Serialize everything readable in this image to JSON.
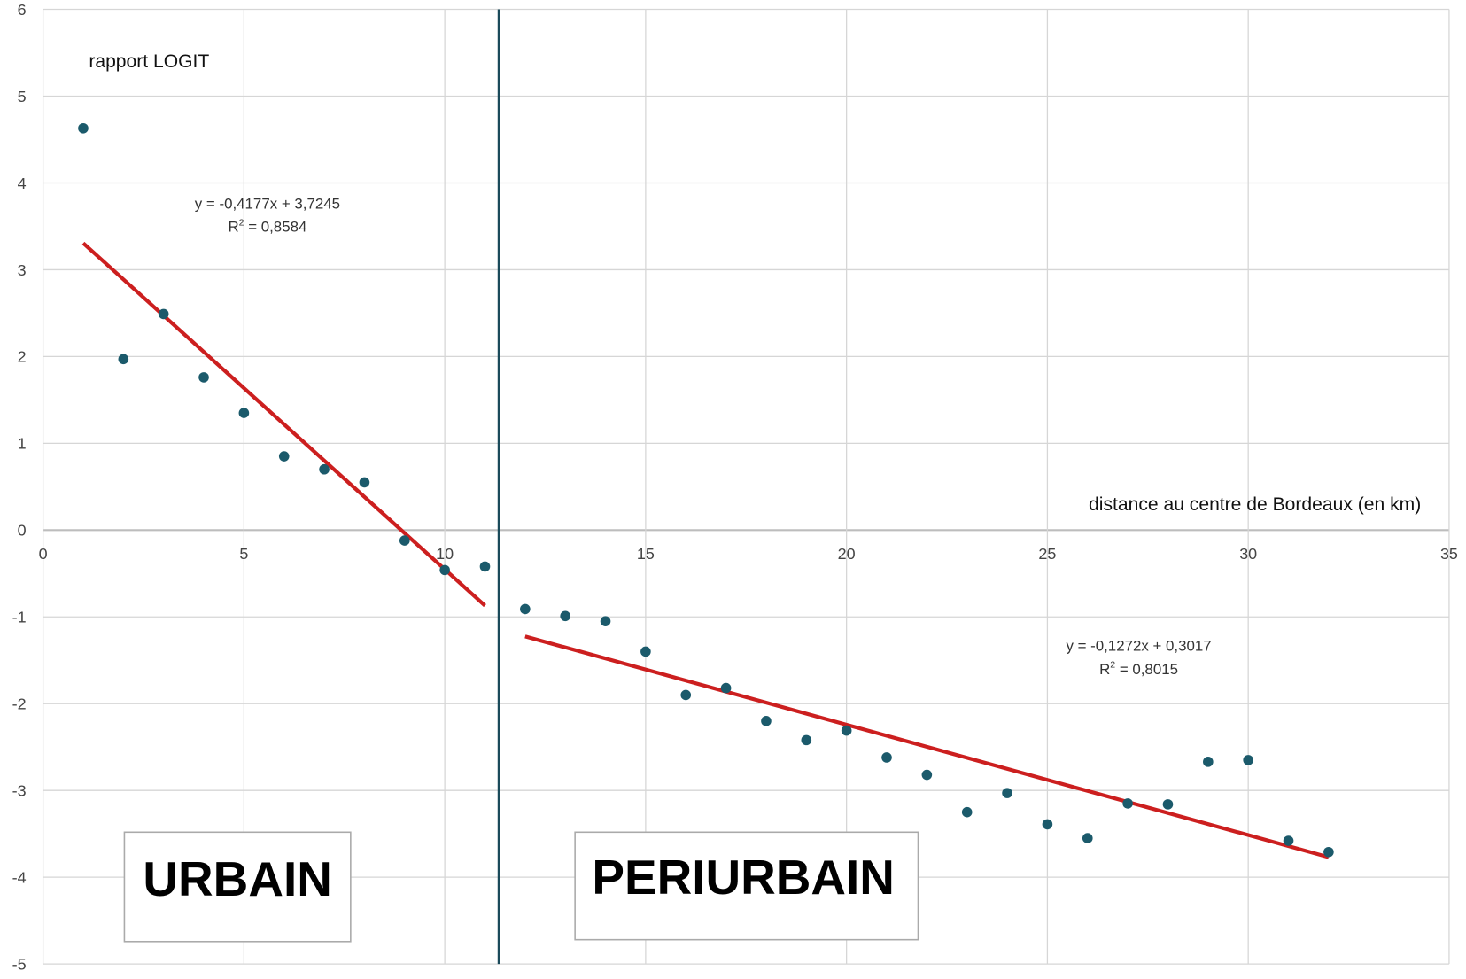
{
  "chart_data": {
    "type": "scatter",
    "title": "",
    "xlabel": "distance au centre de Bordeaux (en km)",
    "ylabel": "rapport LOGIT",
    "xlim": [
      0,
      35
    ],
    "ylim": [
      -5,
      6
    ],
    "xticks": [
      "0",
      "5",
      "10",
      "15",
      "20",
      "25",
      "30",
      "35"
    ],
    "yticks": [
      "6",
      "5",
      "4",
      "3",
      "2",
      "1",
      "0",
      "-1",
      "-2",
      "-3",
      "-4",
      "-5"
    ],
    "grid": true,
    "point_color": "#1b5a6b",
    "trend_color": "#cc1f1f",
    "separator_color": "#1a4a5a",
    "separator_x": 11.35,
    "points": {
      "x": [
        1,
        2,
        3,
        4,
        5,
        6,
        7,
        8,
        9,
        10,
        11,
        12,
        13,
        14,
        15,
        16,
        17,
        18,
        19,
        20,
        21,
        22,
        23,
        24,
        25,
        26,
        27,
        28,
        29,
        30,
        31,
        32
      ],
      "y": [
        4.63,
        1.97,
        2.49,
        1.76,
        1.35,
        0.85,
        0.7,
        0.55,
        -0.12,
        -0.46,
        -0.42,
        -0.91,
        -0.99,
        -1.05,
        -1.4,
        -1.9,
        -1.82,
        -2.2,
        -2.42,
        -2.31,
        -2.62,
        -2.82,
        -3.25,
        -3.03,
        -3.39,
        -3.55,
        -3.15,
        -3.16,
        -2.67,
        -2.65,
        -3.58,
        -3.71
      ]
    },
    "trendlines": [
      {
        "slope": -0.4177,
        "intercept": 3.7245,
        "x_range": [
          1,
          11
        ],
        "equation": "y = -0,4177x + 3,7245",
        "r2_label": "R",
        "r2_value": " = 0,8584"
      },
      {
        "slope": -0.1272,
        "intercept": 0.3017,
        "x_range": [
          12,
          32
        ],
        "equation": "y = -0,1272x + 0,3017",
        "r2_label": "R",
        "r2_value": " = 0,8015"
      }
    ],
    "zones": [
      "URBAIN",
      "PERIURBAIN"
    ]
  }
}
